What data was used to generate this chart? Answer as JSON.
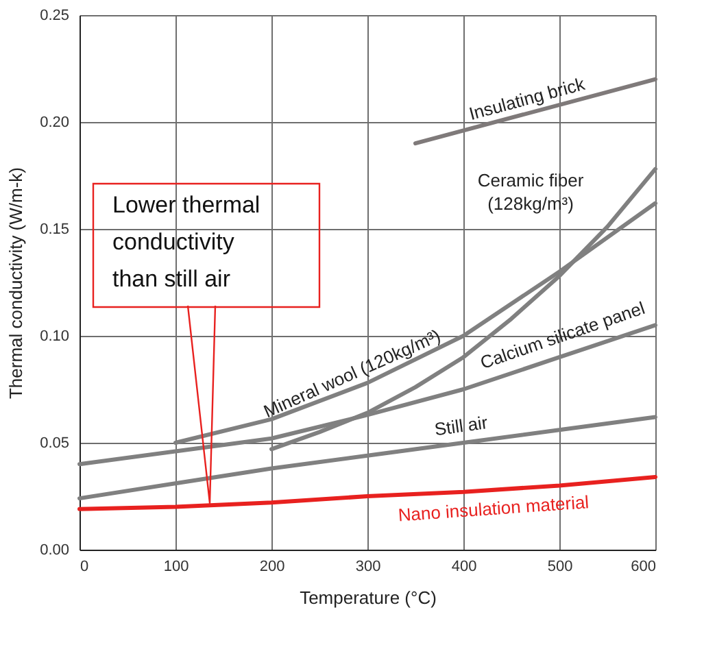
{
  "chart_data": {
    "type": "line",
    "xlabel": "Temperature (°C)",
    "ylabel": "Thermal conductivity (W/m-k)",
    "xlim": [
      0,
      600
    ],
    "xticks": [
      0,
      100,
      200,
      300,
      400,
      500,
      600
    ],
    "ylim": [
      0,
      0.25
    ],
    "yticks": [
      {
        "value": 0,
        "label": "0.00"
      },
      {
        "value": 0.05,
        "label": "0.05"
      },
      {
        "value": 0.1,
        "label": "0.10"
      },
      {
        "value": 0.15,
        "label": "0.15"
      },
      {
        "value": 0.2,
        "label": "0.20"
      },
      {
        "value": 0.25,
        "label": "0.25"
      }
    ],
    "grid": true,
    "legend": false,
    "marker": "none",
    "line_style": "solid",
    "series": [
      {
        "name": "Insulating brick",
        "color": "#7f7a7a",
        "x": [
          350,
          600
        ],
        "values": [
          0.19,
          0.22
        ]
      },
      {
        "name": "Ceramic fiber\n(128kg/m³)",
        "color": "#808080",
        "x": [
          200,
          250,
          300,
          350,
          400,
          450,
          500,
          550,
          600
        ],
        "values": [
          0.047,
          0.055,
          0.064,
          0.076,
          0.09,
          0.108,
          0.128,
          0.151,
          0.178
        ]
      },
      {
        "name": "Mineral wool (120kg/m³)",
        "color": "#808080",
        "x": [
          100,
          200,
          300,
          400,
          500,
          600
        ],
        "values": [
          0.05,
          0.061,
          0.078,
          0.1,
          0.13,
          0.162
        ]
      },
      {
        "name": "Calcium silicate panel",
        "color": "#808080",
        "x": [
          0,
          100,
          200,
          300,
          400,
          500,
          600
        ],
        "values": [
          0.04,
          0.046,
          0.052,
          0.063,
          0.075,
          0.09,
          0.105
        ]
      },
      {
        "name": "Still air",
        "color": "#808080",
        "x": [
          0,
          100,
          200,
          300,
          400,
          500,
          600
        ],
        "values": [
          0.024,
          0.031,
          0.038,
          0.044,
          0.05,
          0.056,
          0.062
        ]
      },
      {
        "name": "Nano insulation material",
        "color": "#e8211f",
        "x": [
          0,
          100,
          200,
          300,
          400,
          500,
          600
        ],
        "values": [
          0.019,
          0.02,
          0.022,
          0.025,
          0.027,
          0.03,
          0.034
        ]
      }
    ],
    "annotations": [
      "Lower thermal\nconductivity\nthan still air"
    ]
  }
}
